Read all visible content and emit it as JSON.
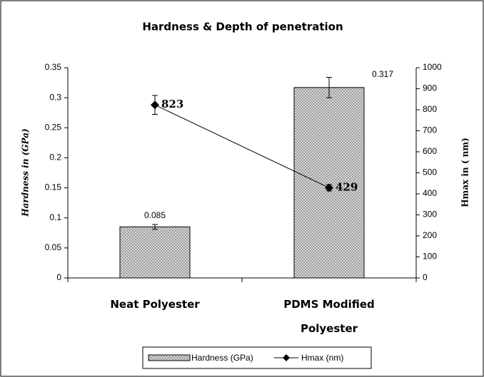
{
  "chart_data": {
    "type": "bar",
    "title": "Hardness & Depth of penetration",
    "y_label": "Hardness in (GPa)",
    "y2_label": "Hmax in ( nm)",
    "categories": [
      "Neat Polyester",
      "PDMS Modified Polyester"
    ],
    "series": [
      {
        "name": "Hardness (GPa)",
        "type": "bar",
        "color": "#8c8c8c",
        "values": [
          0.085,
          0.317
        ],
        "errors": [
          0.004,
          0.017
        ]
      },
      {
        "name": "Hmax (nm)",
        "type": "line",
        "axis": "y2",
        "color": "#000000",
        "values": [
          823,
          429
        ],
        "errors": [
          45,
          15
        ]
      }
    ],
    "ylim": [
      0,
      0.35
    ],
    "yticks": [
      0,
      0.05,
      0.1,
      0.15,
      0.2,
      0.25,
      0.3,
      0.35
    ],
    "y2lim": [
      0,
      1000
    ],
    "y2ticks": [
      0,
      100,
      200,
      300,
      400,
      500,
      600,
      700,
      800,
      900,
      1000
    ],
    "grid": false,
    "legend": "bottom"
  }
}
